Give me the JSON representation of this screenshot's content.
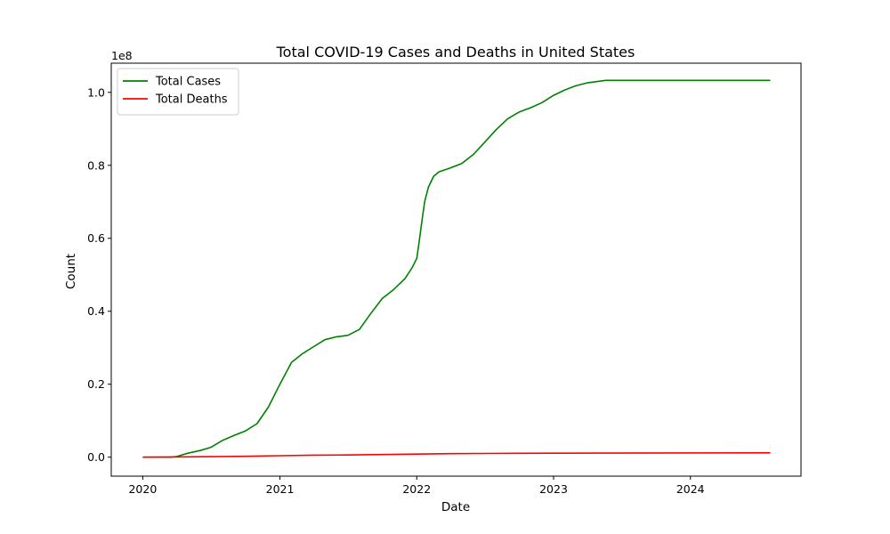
{
  "chart_data": {
    "type": "line",
    "title": "Total COVID-19 Cases and Deaths in United States",
    "xlabel": "Date",
    "ylabel": "Count",
    "y_offset_label": "1e8",
    "y_scale": 100000000,
    "xlim": [
      "2019-10-09",
      "2024-10-22"
    ],
    "ylim": [
      -5200000,
      108000000
    ],
    "grid": false,
    "legend_position": "top-left",
    "x_ticks": [
      {
        "label": "2020",
        "value": "2020-01-01"
      },
      {
        "label": "2021",
        "value": "2021-01-01"
      },
      {
        "label": "2022",
        "value": "2022-01-01"
      },
      {
        "label": "2023",
        "value": "2023-01-01"
      },
      {
        "label": "2024",
        "value": "2024-01-01"
      }
    ],
    "y_ticks": [
      {
        "label": "0.0",
        "value": 0
      },
      {
        "label": "0.2",
        "value": 20000000
      },
      {
        "label": "0.4",
        "value": 40000000
      },
      {
        "label": "0.6",
        "value": 60000000
      },
      {
        "label": "0.8",
        "value": 80000000
      },
      {
        "label": "1.0",
        "value": 100000000
      }
    ],
    "series": [
      {
        "name": "Total Cases",
        "color": "#008000",
        "points": [
          [
            "2020-01-01",
            0
          ],
          [
            "2020-03-15",
            0
          ],
          [
            "2020-04-01",
            200000
          ],
          [
            "2020-05-01",
            1100000
          ],
          [
            "2020-06-01",
            1800000
          ],
          [
            "2020-07-01",
            2700000
          ],
          [
            "2020-08-01",
            4600000
          ],
          [
            "2020-09-01",
            6000000
          ],
          [
            "2020-10-01",
            7200000
          ],
          [
            "2020-11-01",
            9200000
          ],
          [
            "2020-12-01",
            13700000
          ],
          [
            "2021-01-01",
            20000000
          ],
          [
            "2021-02-01",
            26000000
          ],
          [
            "2021-03-01",
            28300000
          ],
          [
            "2021-04-01",
            30300000
          ],
          [
            "2021-05-01",
            32200000
          ],
          [
            "2021-06-01",
            33000000
          ],
          [
            "2021-07-01",
            33400000
          ],
          [
            "2021-08-01",
            35000000
          ],
          [
            "2021-09-01",
            39500000
          ],
          [
            "2021-10-01",
            43500000
          ],
          [
            "2021-11-01",
            46000000
          ],
          [
            "2021-12-01",
            49000000
          ],
          [
            "2021-12-20",
            52000000
          ],
          [
            "2022-01-01",
            54500000
          ],
          [
            "2022-01-08",
            59500000
          ],
          [
            "2022-01-15",
            65000000
          ],
          [
            "2022-01-22",
            70000000
          ],
          [
            "2022-02-01",
            74000000
          ],
          [
            "2022-02-15",
            77000000
          ],
          [
            "2022-03-01",
            78200000
          ],
          [
            "2022-04-01",
            79300000
          ],
          [
            "2022-05-01",
            80500000
          ],
          [
            "2022-06-01",
            83000000
          ],
          [
            "2022-07-01",
            86300000
          ],
          [
            "2022-08-01",
            89800000
          ],
          [
            "2022-09-01",
            92800000
          ],
          [
            "2022-10-01",
            94600000
          ],
          [
            "2022-11-01",
            95800000
          ],
          [
            "2022-12-01",
            97200000
          ],
          [
            "2023-01-01",
            99200000
          ],
          [
            "2023-02-01",
            100700000
          ],
          [
            "2023-03-01",
            101800000
          ],
          [
            "2023-04-01",
            102600000
          ],
          [
            "2023-05-20",
            103300000
          ],
          [
            "2024-08-01",
            103300000
          ]
        ]
      },
      {
        "name": "Total Deaths",
        "color": "#ff0000",
        "points": [
          [
            "2020-01-01",
            0
          ],
          [
            "2020-04-01",
            60000
          ],
          [
            "2020-07-01",
            150000
          ],
          [
            "2020-10-01",
            230000
          ],
          [
            "2021-01-01",
            400000
          ],
          [
            "2021-04-01",
            560000
          ],
          [
            "2021-07-01",
            610000
          ],
          [
            "2021-10-01",
            720000
          ],
          [
            "2022-01-01",
            840000
          ],
          [
            "2022-04-01",
            980000
          ],
          [
            "2022-07-01",
            1020000
          ],
          [
            "2022-10-01",
            1060000
          ],
          [
            "2023-01-01",
            1100000
          ],
          [
            "2023-05-20",
            1130000
          ],
          [
            "2024-08-01",
            1190000
          ]
        ]
      }
    ]
  }
}
